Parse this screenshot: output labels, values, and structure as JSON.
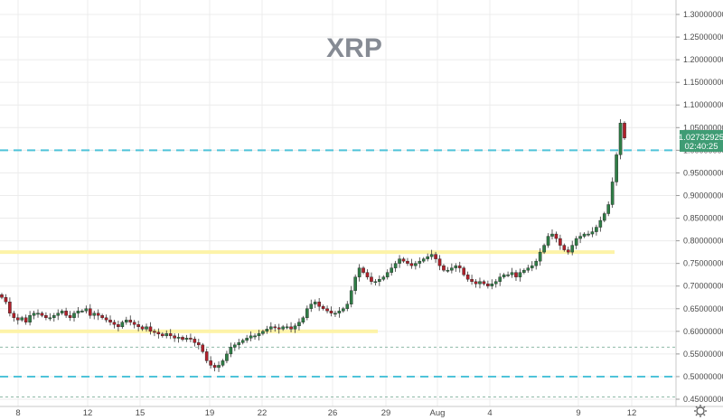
{
  "chart_data": {
    "type": "candlestick",
    "title": "XRP",
    "y_ticks": [
      "1.30000000",
      "1.25000000",
      "1.20000000",
      "1.15000000",
      "1.10000000",
      "1.05000000",
      "1.00000000",
      "0.95000000",
      "0.90000000",
      "0.85000000",
      "0.80000000",
      "0.75000000",
      "0.70000000",
      "0.65000000",
      "0.60000000",
      "0.55000000",
      "0.50000000",
      "0.45000000"
    ],
    "x_ticks": [
      "8",
      "12",
      "15",
      "19",
      "22",
      "26",
      "29",
      "Aug",
      "4",
      "9",
      "12"
    ],
    "ylim": [
      0.445,
      1.325
    ],
    "grid": true,
    "last_price_label": "1.02732925",
    "countdown_label": "02:40:25",
    "horizontal_lines": [
      {
        "kind": "dashed",
        "level": 1.0,
        "color": "#4fc3d9"
      },
      {
        "kind": "dashed",
        "level": 0.5,
        "color": "#4fc3d9"
      },
      {
        "kind": "dotted",
        "level": 0.565,
        "color": "#8fb9a8"
      },
      {
        "kind": "dotted",
        "level": 0.455,
        "color": "#8fb9a8"
      },
      {
        "kind": "support",
        "level": 0.6,
        "color": "#fdf3a8"
      },
      {
        "kind": "resistance",
        "level": 0.775,
        "color": "#fdf3a8"
      }
    ],
    "ohlc_close_path": [
      0.675,
      0.665,
      0.64,
      0.63,
      0.625,
      0.63,
      0.62,
      0.635,
      0.64,
      0.64,
      0.635,
      0.63,
      0.63,
      0.635,
      0.64,
      0.645,
      0.635,
      0.63,
      0.64,
      0.645,
      0.645,
      0.65,
      0.635,
      0.64,
      0.635,
      0.63,
      0.625,
      0.62,
      0.615,
      0.61,
      0.62,
      0.625,
      0.62,
      0.615,
      0.61,
      0.605,
      0.61,
      0.6,
      0.598,
      0.594,
      0.59,
      0.595,
      0.59,
      0.585,
      0.587,
      0.582,
      0.585,
      0.583,
      0.575,
      0.57,
      0.555,
      0.535,
      0.525,
      0.52,
      0.525,
      0.535,
      0.55,
      0.565,
      0.57,
      0.575,
      0.58,
      0.585,
      0.59,
      0.59,
      0.595,
      0.6,
      0.605,
      0.61,
      0.608,
      0.605,
      0.61,
      0.61,
      0.605,
      0.612,
      0.62,
      0.63,
      0.65,
      0.66,
      0.665,
      0.655,
      0.65,
      0.645,
      0.64,
      0.64,
      0.645,
      0.65,
      0.66,
      0.69,
      0.72,
      0.74,
      0.73,
      0.72,
      0.71,
      0.71,
      0.715,
      0.72,
      0.73,
      0.74,
      0.75,
      0.76,
      0.755,
      0.75,
      0.745,
      0.75,
      0.755,
      0.76,
      0.765,
      0.77,
      0.76,
      0.745,
      0.735,
      0.735,
      0.74,
      0.745,
      0.74,
      0.725,
      0.715,
      0.71,
      0.705,
      0.71,
      0.705,
      0.7,
      0.705,
      0.71,
      0.72,
      0.725,
      0.725,
      0.73,
      0.72,
      0.73,
      0.735,
      0.74,
      0.745,
      0.755,
      0.775,
      0.79,
      0.81,
      0.815,
      0.805,
      0.79,
      0.78,
      0.775,
      0.79,
      0.805,
      0.81,
      0.815,
      0.815,
      0.82,
      0.83,
      0.845,
      0.86,
      0.88,
      0.93,
      0.99,
      1.06,
      1.027
    ],
    "candle_x_range": [
      0,
      695
    ]
  }
}
